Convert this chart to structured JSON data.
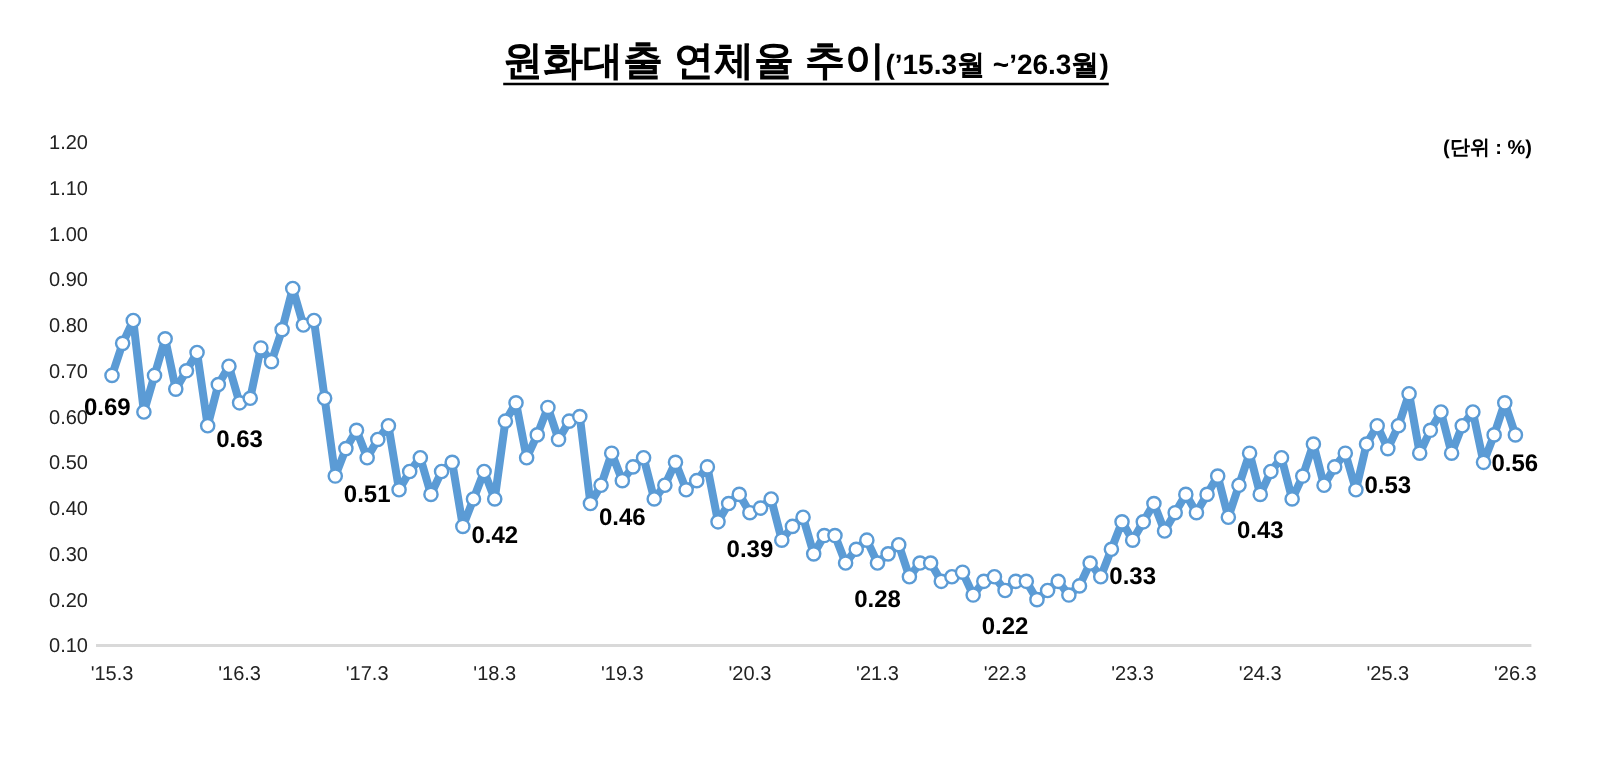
{
  "chart_data": {
    "type": "line",
    "title": "원화대출 연체율 추이",
    "subtitle": "(’15.3월 ~’26.3월)",
    "annotations": [
      "(단위 : %)"
    ],
    "categories": [
      "'15.3",
      null,
      null,
      null,
      null,
      null,
      null,
      null,
      null,
      null,
      null,
      null,
      "'16.3",
      null,
      null,
      null,
      null,
      null,
      null,
      null,
      null,
      null,
      null,
      null,
      "'17.3",
      null,
      null,
      null,
      null,
      null,
      null,
      null,
      null,
      null,
      null,
      null,
      "'18.3",
      null,
      null,
      null,
      null,
      null,
      null,
      null,
      null,
      null,
      null,
      null,
      "'19.3",
      null,
      null,
      null,
      null,
      null,
      null,
      null,
      null,
      null,
      null,
      null,
      "'20.3",
      null,
      null,
      null,
      null,
      null,
      null,
      null,
      null,
      null,
      null,
      null,
      "'21.3",
      null,
      null,
      null,
      null,
      null,
      null,
      null,
      null,
      null,
      null,
      null,
      "'22.3",
      null,
      null,
      null,
      null,
      null,
      null,
      null,
      null,
      null,
      null,
      null,
      "'23.3",
      null,
      null,
      null,
      null,
      null,
      null,
      null,
      null,
      null,
      null,
      null,
      "'24.3",
      null,
      null,
      null,
      null,
      null,
      null,
      null,
      null,
      null,
      null,
      null,
      "'25.3",
      null,
      null,
      null,
      null,
      null,
      null,
      null,
      null,
      null,
      null,
      null,
      "'26.3"
    ],
    "series": [
      {
        "color": "#5b9bd5",
        "values": [
          0.69,
          0.76,
          0.81,
          0.61,
          0.69,
          0.77,
          0.66,
          0.7,
          0.74,
          0.58,
          0.67,
          0.71,
          0.63,
          0.64,
          0.75,
          0.72,
          0.79,
          0.88,
          0.8,
          0.81,
          0.64,
          0.47,
          0.53,
          0.57,
          0.51,
          0.55,
          0.58,
          0.44,
          0.48,
          0.51,
          0.43,
          0.48,
          0.5,
          0.36,
          0.42,
          0.48,
          0.42,
          0.59,
          0.63,
          0.51,
          0.56,
          0.62,
          0.55,
          0.59,
          0.6,
          0.41,
          0.45,
          0.52,
          0.46,
          0.49,
          0.51,
          0.42,
          0.45,
          0.5,
          0.44,
          0.46,
          0.49,
          0.37,
          0.41,
          0.43,
          0.39,
          0.4,
          0.42,
          0.33,
          0.36,
          0.38,
          0.3,
          0.34,
          0.34,
          0.28,
          0.31,
          0.33,
          0.28,
          0.3,
          0.32,
          0.25,
          0.28,
          0.28,
          0.24,
          0.25,
          0.26,
          0.21,
          0.24,
          0.25,
          0.22,
          0.24,
          0.24,
          0.2,
          0.22,
          0.24,
          0.21,
          0.23,
          0.28,
          0.25,
          0.31,
          0.37,
          0.33,
          0.37,
          0.41,
          0.35,
          0.39,
          0.43,
          0.39,
          0.43,
          0.47,
          0.38,
          0.45,
          0.52,
          0.43,
          0.48,
          0.51,
          0.42,
          0.47,
          0.54,
          0.45,
          0.49,
          0.52,
          0.44,
          0.54,
          0.58,
          0.53,
          0.58,
          0.65,
          0.52,
          0.57,
          0.61,
          0.52,
          0.58,
          0.61,
          0.5,
          0.56,
          0.63,
          0.56
        ],
        "value_labels": [
          "0.69",
          null,
          null,
          null,
          null,
          null,
          null,
          null,
          null,
          null,
          null,
          null,
          "0.63",
          null,
          null,
          null,
          null,
          null,
          null,
          null,
          null,
          null,
          null,
          null,
          "0.51",
          null,
          null,
          null,
          null,
          null,
          null,
          null,
          null,
          null,
          null,
          null,
          "0.42",
          null,
          null,
          null,
          null,
          null,
          null,
          null,
          null,
          null,
          null,
          null,
          "0.46",
          null,
          null,
          null,
          null,
          null,
          null,
          null,
          null,
          null,
          null,
          null,
          "0.39",
          null,
          null,
          null,
          null,
          null,
          null,
          null,
          null,
          null,
          null,
          null,
          "0.28",
          null,
          null,
          null,
          null,
          null,
          null,
          null,
          null,
          null,
          null,
          null,
          "0.22",
          null,
          null,
          null,
          null,
          null,
          null,
          null,
          null,
          null,
          null,
          null,
          "0.33",
          null,
          null,
          null,
          null,
          null,
          null,
          null,
          null,
          null,
          null,
          null,
          "0.43",
          null,
          null,
          null,
          null,
          null,
          null,
          null,
          null,
          null,
          null,
          null,
          "0.53",
          null,
          null,
          null,
          null,
          null,
          null,
          null,
          null,
          null,
          null,
          null,
          "0.56"
        ]
      }
    ],
    "ylim": [
      0.1,
      1.2
    ],
    "yticks": [
      {
        "value": 0.1,
        "label": "0.10"
      },
      {
        "value": 0.2,
        "label": "0.20"
      },
      {
        "value": 0.3,
        "label": "0.30"
      },
      {
        "value": 0.4,
        "label": "0.40"
      },
      {
        "value": 0.5,
        "label": "0.50"
      },
      {
        "value": 0.6,
        "label": "0.60"
      },
      {
        "value": 0.7,
        "label": "0.70"
      },
      {
        "value": 0.8,
        "label": "0.80"
      },
      {
        "value": 0.9,
        "label": "0.90"
      },
      {
        "value": 1.0,
        "label": "1.00"
      },
      {
        "value": 1.1,
        "label": "1.10"
      },
      {
        "value": 1.2,
        "label": "1.20"
      }
    ],
    "marker": "circle",
    "line_style": "solid",
    "grid": false
  }
}
